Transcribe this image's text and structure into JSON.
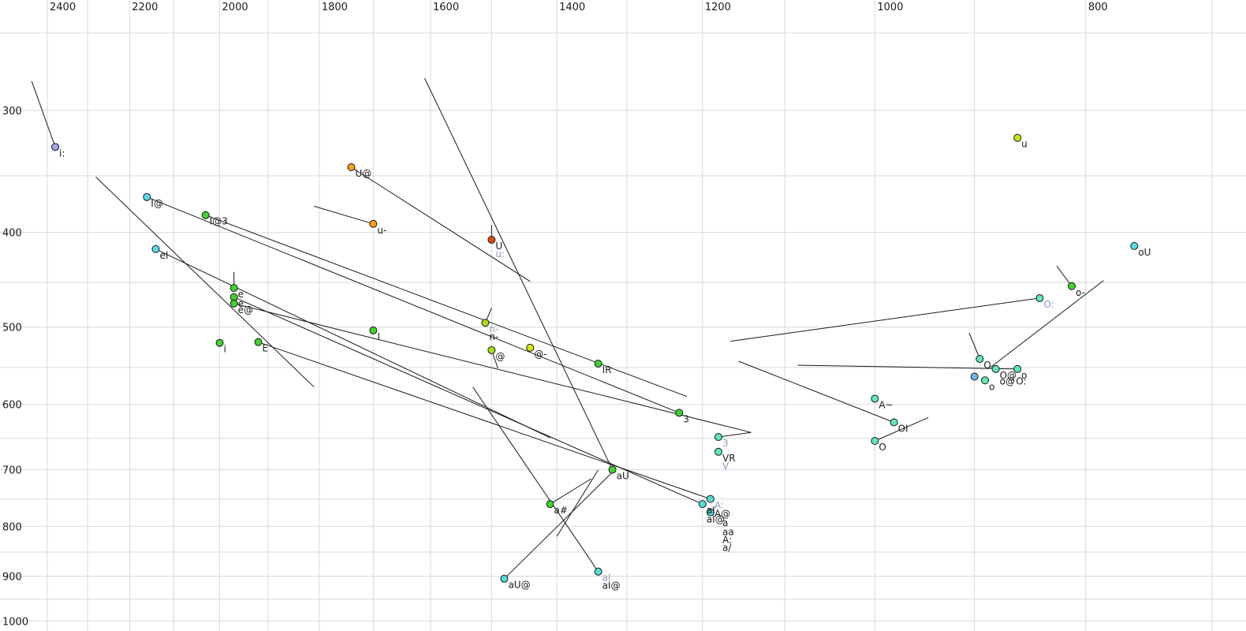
{
  "chart_data": {
    "type": "scatter",
    "title": "",
    "xlabel": "",
    "ylabel": "",
    "x_axis": {
      "unit": "Hz",
      "scale": "log",
      "reversed": true,
      "tick_labels": [
        "2400",
        "2200",
        "2000",
        "1800",
        "1600",
        "1400",
        "1200",
        "1000",
        "800"
      ],
      "tick_values": [
        2400,
        2200,
        2000,
        1800,
        1600,
        1400,
        1200,
        1000,
        800
      ],
      "gridline_values": [
        2400,
        2300,
        2200,
        2100,
        2000,
        1900,
        1800,
        1700,
        1600,
        1500,
        1400,
        1300,
        1200,
        1100,
        1000,
        900,
        800,
        700
      ],
      "range_visible": [
        2520,
        680
      ]
    },
    "y_axis": {
      "unit": "Hz",
      "scale": "log",
      "reversed": false,
      "tick_labels": [
        "300",
        "400",
        "500",
        "600",
        "700",
        "800",
        "900",
        "1000"
      ],
      "tick_values": [
        300,
        400,
        500,
        600,
        700,
        800,
        900,
        1000
      ],
      "gridline_values": [
        250,
        300,
        350,
        400,
        450,
        500,
        550,
        600,
        650,
        700,
        750,
        800,
        850,
        900,
        950,
        1000
      ],
      "range_visible": [
        232,
        1010
      ]
    },
    "grid": true,
    "legend": false,
    "points": [
      {
        "label": "i:",
        "f2": 2380,
        "f1": 327,
        "color": "violet"
      },
      {
        "label": "I@",
        "f2": 2160,
        "f1": 368,
        "color": "cyan"
      },
      {
        "label": "I@3",
        "f2": 2030,
        "f1": 384,
        "color": "green"
      },
      {
        "label": "eI",
        "f2": 2140,
        "f1": 416,
        "color": "cyan"
      },
      {
        "label": "e",
        "f2": 1970,
        "f1": 456,
        "color": "green"
      },
      {
        "label": "e:",
        "f2": 1970,
        "f1": 466,
        "color": "green"
      },
      {
        "label": "e@",
        "f2": 1970,
        "f1": 473,
        "color": "green"
      },
      {
        "label": "U@",
        "f2": 1740,
        "f1": 343,
        "color": "orange"
      },
      {
        "label": "u-",
        "f2": 1700,
        "f1": 392,
        "color": "orange"
      },
      {
        "label": "U",
        "ghost": "u:",
        "ghost_pos": "below",
        "f2": 1500,
        "f1": 407,
        "color": "red"
      },
      {
        "label": "i",
        "f2": 2000,
        "f1": 519,
        "color": "green"
      },
      {
        "label": "E",
        "f2": 1920,
        "f1": 518,
        "color": "green"
      },
      {
        "label": "I",
        "f2": 1700,
        "f1": 504,
        "color": "green"
      },
      {
        "label": "n-",
        "ghost": "n-",
        "ghost_pos": "above",
        "f2": 1510,
        "f1": 495,
        "color": "yellowgreen"
      },
      {
        "label": "@",
        "f2": 1500,
        "f1": 528,
        "color": "yellowgreen"
      },
      {
        "label": "@-",
        "f2": 1440,
        "f1": 525,
        "color": "yellow"
      },
      {
        "label": "IR",
        "f2": 1340,
        "f1": 545,
        "color": "green"
      },
      {
        "label": "3",
        "f2": 1230,
        "f1": 612,
        "color": "green"
      },
      {
        "label": "",
        "ghost": "3",
        "ghost_pos": "below",
        "f2": 1180,
        "f1": 648,
        "color": "aqua"
      },
      {
        "label": "VR",
        "ghost": "V",
        "ghost_pos": "below",
        "f2": 1180,
        "f1": 671,
        "color": "aqua"
      },
      {
        "label": "aU",
        "f2": 1320,
        "f1": 700,
        "color": "green"
      },
      {
        "label": "a#",
        "f2": 1410,
        "f1": 759,
        "color": "green"
      },
      {
        "label": "",
        "ghost": "A:",
        "ghost_pos": "below",
        "f2": 1190,
        "f1": 750,
        "color": "turquoise"
      },
      {
        "label": "aI",
        "f2": 1200,
        "f1": 759,
        "color": "turquoise"
      },
      {
        "label": "",
        "f2": 1190,
        "f1": 774,
        "color": "turquoise"
      },
      {
        "label": "aU@",
        "f2": 1480,
        "f1": 905,
        "color": "turquoise"
      },
      {
        "label": "aI@",
        "ghost": "aI",
        "ghost_pos": "above",
        "f2": 1340,
        "f1": 890,
        "color": "turquoise"
      },
      {
        "label": "A~",
        "f2": 1000,
        "f1": 592,
        "color": "aqua"
      },
      {
        "label": "OI",
        "f2": 980,
        "f1": 626,
        "color": "aqua"
      },
      {
        "label": "O",
        "f2": 1000,
        "f1": 654,
        "color": "aqua"
      },
      {
        "label": "O",
        "f2": 895,
        "f1": 539,
        "color": "aqua"
      },
      {
        "label": "O@",
        "f2": 880,
        "f1": 552,
        "color": "aqua"
      },
      {
        "label": "o",
        "f2": 860,
        "f1": 552,
        "color": "aqua"
      },
      {
        "label": "",
        "f2": 900,
        "f1": 562,
        "color": "lightblue"
      },
      {
        "label": "o",
        "f2": 890,
        "f1": 567,
        "color": "aqua"
      },
      {
        "label": "u",
        "f2": 860,
        "f1": 320,
        "color": "yellowgreen2"
      },
      {
        "label": "oU",
        "f2": 760,
        "f1": 413,
        "color": "cyan"
      },
      {
        "label": "o-",
        "f2": 812,
        "f1": 454,
        "color": "green"
      },
      {
        "label": "",
        "ghost": "O:",
        "ghost_pos": "below",
        "f2": 840,
        "f1": 467,
        "color": "aqua"
      }
    ],
    "free_labels": [
      {
        "text": "A@",
        "f2": 1190,
        "f1": 765,
        "color": "ink"
      },
      {
        "text": "aI@",
        "f2": 1200,
        "f1": 775,
        "color": "ink"
      },
      {
        "text": "a",
        "f2": 1180,
        "f1": 782,
        "color": "ink"
      },
      {
        "text": "aa",
        "f2": 1180,
        "f1": 799,
        "color": "ink"
      },
      {
        "text": "A:",
        "f2": 1180,
        "f1": 814,
        "color": "ink"
      },
      {
        "text": "a/",
        "f2": 1180,
        "f1": 829,
        "color": "ink"
      },
      {
        "text": "o@",
        "f2": 880,
        "f1": 560,
        "color": "ink"
      },
      {
        "text": "O:",
        "f2": 865,
        "f1": 560,
        "color": "ink"
      }
    ],
    "trajectories": [
      {
        "pts": [
          [
            2440,
            280
          ],
          [
            2380,
            327
          ]
        ]
      },
      {
        "pts": [
          [
            2280,
            351
          ],
          [
            1810,
            576
          ]
        ]
      },
      {
        "pts": [
          [
            2160,
            368
          ],
          [
            1230,
            612
          ]
        ]
      },
      {
        "pts": [
          [
            2030,
            384
          ],
          [
            1220,
            589
          ]
        ]
      },
      {
        "pts": [
          [
            2140,
            416
          ],
          [
            1410,
            649
          ]
        ]
      },
      {
        "pts": [
          [
            1970,
            439
          ],
          [
            1970,
            456
          ]
        ]
      },
      {
        "pts": [
          [
            1970,
            473
          ],
          [
            1140,
            641
          ],
          [
            1180,
            648
          ]
        ]
      },
      {
        "pts": [
          [
            1920,
            518
          ],
          [
            1190,
            750
          ]
        ]
      },
      {
        "pts": [
          [
            1970,
            466
          ],
          [
            1200,
            759
          ]
        ]
      },
      {
        "pts": [
          [
            1740,
            343
          ],
          [
            1440,
            449
          ]
        ]
      },
      {
        "pts": [
          [
            1810,
            376
          ],
          [
            1700,
            392
          ]
        ]
      },
      {
        "pts": [
          [
            1500,
            393
          ],
          [
            1500,
            407
          ]
        ]
      },
      {
        "pts": [
          [
            1610,
            278
          ],
          [
            1320,
            700
          ]
        ]
      },
      {
        "pts": [
          [
            1500,
            478
          ],
          [
            1510,
            495
          ]
        ]
      },
      {
        "pts": [
          [
            1500,
            528
          ],
          [
            1490,
            551
          ]
        ]
      },
      {
        "pts": [
          [
            1410,
            759
          ],
          [
            1350,
            715
          ]
        ]
      },
      {
        "pts": [
          [
            1480,
            905
          ],
          [
            1320,
            704
          ]
        ]
      },
      {
        "pts": [
          [
            1340,
            890
          ],
          [
            1530,
            576
          ]
        ]
      },
      {
        "pts": [
          [
            1400,
            819
          ],
          [
            1340,
            700
          ]
        ]
      },
      {
        "pts": [
          [
            905,
            507
          ],
          [
            895,
            539
          ]
        ]
      },
      {
        "pts": [
          [
            1085,
            547
          ],
          [
            860,
            552
          ]
        ]
      },
      {
        "pts": [
          [
            885,
            550
          ],
          [
            785,
            448
          ]
        ]
      },
      {
        "pts": [
          [
            1165,
            517
          ],
          [
            840,
            467
          ]
        ]
      },
      {
        "pts": [
          [
            1155,
            542
          ],
          [
            980,
            626
          ]
        ]
      },
      {
        "pts": [
          [
            1000,
            654
          ],
          [
            945,
            619
          ]
        ]
      },
      {
        "pts": [
          [
            825,
            433
          ],
          [
            812,
            454
          ]
        ]
      }
    ]
  },
  "colors": {
    "green": "#3ed32f",
    "cyan": "#55dce8",
    "turquoise": "#54dcd8",
    "aqua": "#5ee8b4",
    "violet": "#a0a0ee",
    "lightblue": "#6ab8e8",
    "yellowgreen": "#aadd1c",
    "yellowgreen2": "#c9e414",
    "yellow": "#d9e800",
    "orange": "#ffa112",
    "red": "#d84a10",
    "ink": "#1a1a1a",
    "ghost": "#9196c0",
    "grid": "#d9d9d9",
    "background": "#ffffff"
  }
}
